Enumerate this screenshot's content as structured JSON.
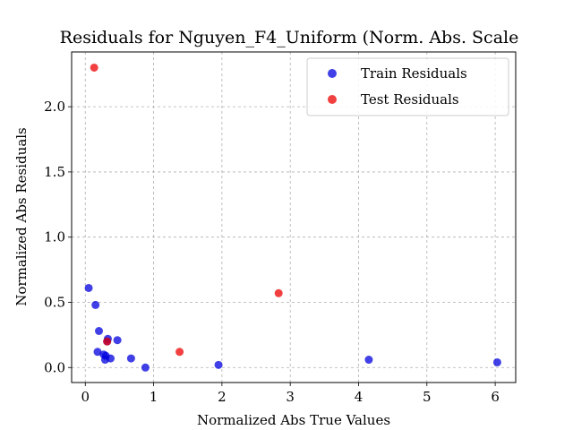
{
  "chart_data": {
    "type": "scatter",
    "title": "Residuals for Nguyen_F4_Uniform (Norm. Abs. Scale",
    "xlabel": "Normalized Abs True Values",
    "ylabel": "Normalized Abs Residuals",
    "xlim": [
      -0.2,
      6.3
    ],
    "ylim": [
      -0.115,
      2.42
    ],
    "xticks": [
      "0",
      "1",
      "2",
      "3",
      "4",
      "5",
      "6"
    ],
    "yticks": [
      "0.0",
      "0.5",
      "1.0",
      "1.5",
      "2.0"
    ],
    "grid": true,
    "legend": "top-right",
    "series": [
      {
        "name": "Train Residuals",
        "color": "#0000dd",
        "points": [
          {
            "x": 0.05,
            "y": 0.61
          },
          {
            "x": 0.15,
            "y": 0.48
          },
          {
            "x": 0.2,
            "y": 0.28
          },
          {
            "x": 0.18,
            "y": 0.12
          },
          {
            "x": 0.27,
            "y": 0.1
          },
          {
            "x": 0.3,
            "y": 0.09
          },
          {
            "x": 0.29,
            "y": 0.06
          },
          {
            "x": 0.33,
            "y": 0.22
          },
          {
            "x": 0.32,
            "y": 0.2
          },
          {
            "x": 0.37,
            "y": 0.07
          },
          {
            "x": 0.47,
            "y": 0.21
          },
          {
            "x": 0.67,
            "y": 0.07
          },
          {
            "x": 0.88,
            "y": 0.0
          },
          {
            "x": 1.95,
            "y": 0.02
          },
          {
            "x": 4.15,
            "y": 0.06
          },
          {
            "x": 6.03,
            "y": 0.04
          }
        ]
      },
      {
        "name": "Test Residuals",
        "color": "#ee0000",
        "points": [
          {
            "x": 0.13,
            "y": 2.3
          },
          {
            "x": 0.32,
            "y": 0.2
          },
          {
            "x": 1.38,
            "y": 0.12
          },
          {
            "x": 2.83,
            "y": 0.57
          }
        ]
      }
    ]
  }
}
